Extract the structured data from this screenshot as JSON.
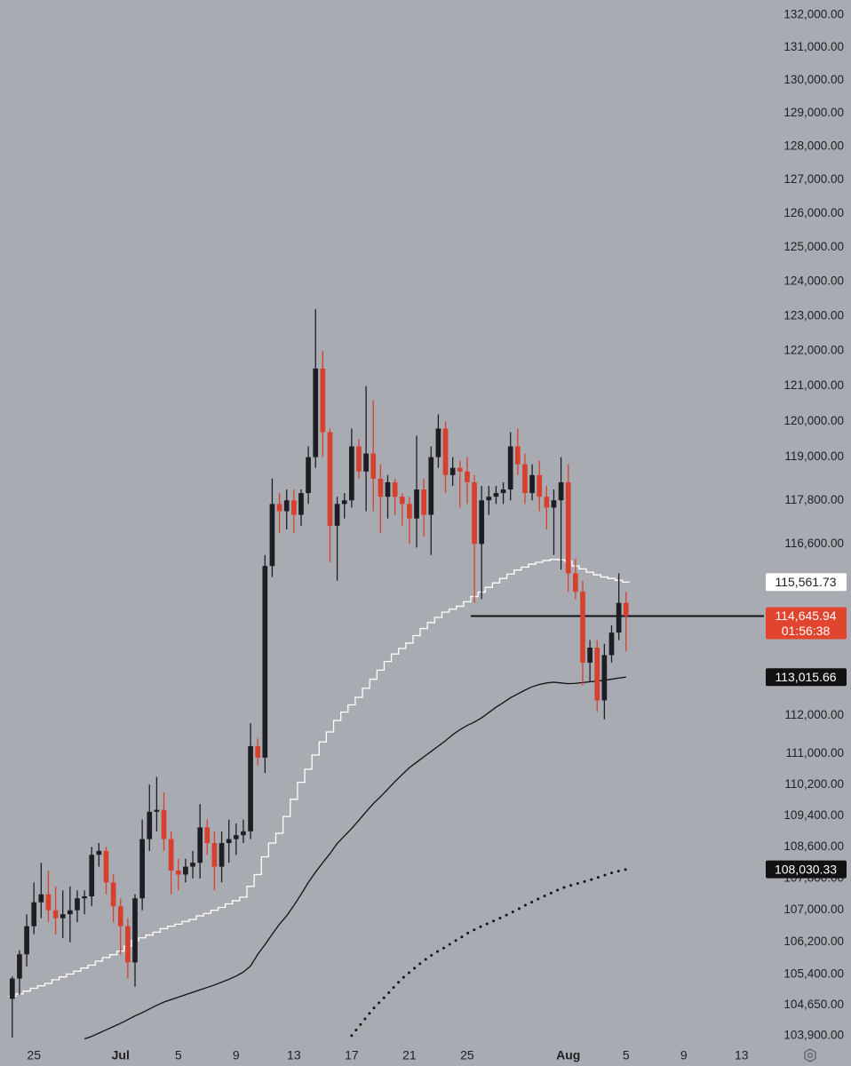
{
  "chart_data": {
    "type": "candlestick",
    "log_scale": true,
    "up_color": "#1d1e23",
    "down_color": "#d8402e",
    "background": "#a9abb2",
    "xlim": [
      -1.7,
      104.1
    ],
    "ylim": [
      103700,
      132470
    ],
    "xticks": [
      {
        "value": 3,
        "label": "25"
      },
      {
        "value": 15,
        "label": "Jul"
      },
      {
        "value": 23,
        "label": "5"
      },
      {
        "value": 31,
        "label": "9"
      },
      {
        "value": 39,
        "label": "13"
      },
      {
        "value": 47,
        "label": "17"
      },
      {
        "value": 55,
        "label": "21"
      },
      {
        "value": 63,
        "label": "25"
      },
      {
        "value": 77,
        "label": "Aug"
      },
      {
        "value": 85,
        "label": "5"
      },
      {
        "value": 93,
        "label": "9"
      },
      {
        "value": 101,
        "label": "13"
      }
    ],
    "yticks": [
      {
        "value": 132000,
        "label": "132,000.00"
      },
      {
        "value": 131000,
        "label": "131,000.00"
      },
      {
        "value": 130000,
        "label": "130,000.00"
      },
      {
        "value": 129000,
        "label": "129,000.00"
      },
      {
        "value": 128000,
        "label": "128,000.00"
      },
      {
        "value": 127000,
        "label": "127,000.00"
      },
      {
        "value": 126000,
        "label": "126,000.00"
      },
      {
        "value": 125000,
        "label": "125,000.00"
      },
      {
        "value": 124000,
        "label": "124,000.00"
      },
      {
        "value": 123000,
        "label": "123,000.00"
      },
      {
        "value": 122000,
        "label": "122,000.00"
      },
      {
        "value": 121000,
        "label": "121,000.00"
      },
      {
        "value": 120000,
        "label": "120,000.00"
      },
      {
        "value": 119000,
        "label": "119,000.00"
      },
      {
        "value": 117800,
        "label": "117,800.00"
      },
      {
        "value": 116600,
        "label": "116,600.00"
      },
      {
        "value": 112000,
        "label": "112,000.00"
      },
      {
        "value": 111000,
        "label": "111,000.00"
      },
      {
        "value": 110200,
        "label": "110,200.00"
      },
      {
        "value": 109400,
        "label": "109,400.00"
      },
      {
        "value": 108600,
        "label": "108,600.00"
      },
      {
        "value": 107800,
        "label": "107,800.00"
      },
      {
        "value": 107000,
        "label": "107,000.00"
      },
      {
        "value": 106200,
        "label": "106,200.00"
      },
      {
        "value": 105400,
        "label": "105,400.00"
      },
      {
        "value": 104650,
        "label": "104,650.00"
      },
      {
        "value": 103900,
        "label": "103,900.00"
      }
    ],
    "open": [
      104800,
      105300,
      105900,
      106600,
      107200,
      107400,
      107000,
      106800,
      106900,
      107000,
      107300,
      107350,
      108400,
      108500,
      107700,
      107100,
      106600,
      105700,
      107300,
      108800,
      109500,
      109550,
      108800,
      108000,
      107900,
      108100,
      108200,
      109100,
      108700,
      108100,
      108700,
      108800,
      108900,
      109000,
      111200,
      110900,
      116000,
      117700,
      117500,
      117800,
      117400,
      118000,
      119000,
      121500,
      119700,
      117100,
      117700,
      117800,
      119300,
      118600,
      119100,
      118400,
      117900,
      118300,
      117900,
      117700,
      117300,
      118100,
      117400,
      119000,
      119800,
      118500,
      118700,
      118600,
      118300,
      116600,
      117800,
      117900,
      118000,
      118100,
      119300,
      118800,
      118000,
      118500,
      117900,
      117600,
      117800,
      118300,
      115800,
      115300,
      113400,
      113800,
      112400,
      113600,
      114200,
      115000
    ],
    "high": [
      105350,
      106000,
      106900,
      107700,
      108200,
      108000,
      107600,
      107500,
      107600,
      107500,
      107500,
      108600,
      108700,
      108600,
      107900,
      107300,
      106800,
      107400,
      109300,
      110200,
      110400,
      110000,
      109000,
      108300,
      108300,
      108500,
      109700,
      109300,
      109000,
      109000,
      109300,
      109200,
      109300,
      111800,
      111400,
      116300,
      118400,
      118000,
      118100,
      118100,
      118100,
      119300,
      123200,
      122000,
      119800,
      117900,
      118000,
      119800,
      119500,
      121000,
      120600,
      118800,
      118500,
      118400,
      118000,
      117900,
      119600,
      118400,
      119300,
      120200,
      120000,
      119000,
      118900,
      119000,
      118500,
      118200,
      118200,
      118200,
      118300,
      119700,
      119800,
      119100,
      118800,
      118900,
      118200,
      118100,
      119000,
      118800,
      116200,
      115600,
      114000,
      114000,
      113900,
      114400,
      115800,
      115300
    ],
    "low": [
      103850,
      104900,
      105600,
      106400,
      106800,
      106700,
      106400,
      106300,
      106200,
      106700,
      106900,
      107100,
      108100,
      107400,
      106700,
      105900,
      105300,
      105100,
      107000,
      108500,
      109000,
      108500,
      107400,
      107500,
      107700,
      107800,
      107800,
      108400,
      107500,
      107700,
      108200,
      108400,
      108700,
      108800,
      110700,
      110500,
      115700,
      116900,
      117000,
      116900,
      117100,
      117700,
      118700,
      119000,
      116100,
      115600,
      117300,
      117600,
      118400,
      117500,
      117500,
      116900,
      117300,
      117400,
      117100,
      116600,
      116500,
      116800,
      116300,
      118700,
      118000,
      118200,
      117600,
      117700,
      115000,
      115100,
      117400,
      117700,
      117700,
      117800,
      118500,
      117700,
      117800,
      117500,
      117000,
      116300,
      115900,
      115300,
      115100,
      112800,
      112900,
      112100,
      111900,
      113400,
      114000,
      113700
    ],
    "close": [
      105300,
      105900,
      106600,
      107200,
      107400,
      107000,
      106800,
      106900,
      107000,
      107300,
      107350,
      108400,
      108500,
      107700,
      107100,
      106600,
      105700,
      107300,
      108800,
      109500,
      109550,
      108800,
      108000,
      107900,
      108100,
      108200,
      109100,
      108700,
      108100,
      108700,
      108800,
      108900,
      109000,
      111200,
      110900,
      116000,
      117700,
      117500,
      117800,
      117400,
      118000,
      119000,
      121500,
      119700,
      117100,
      117700,
      117800,
      119300,
      118600,
      119100,
      118400,
      117900,
      118300,
      117900,
      117700,
      117300,
      118100,
      117400,
      119000,
      119800,
      118500,
      118700,
      118600,
      118300,
      116600,
      117800,
      117900,
      118000,
      118100,
      119300,
      118800,
      118000,
      118500,
      117900,
      117600,
      117800,
      118300,
      115800,
      115300,
      113400,
      113800,
      112400,
      113600,
      114200,
      115000,
      114645.94
    ],
    "lines": [
      {
        "color": "#ffffff",
        "style": "step",
        "values": [
          104860,
          104920,
          104990,
          105060,
          105120,
          105180,
          105270,
          105340,
          105410,
          105480,
          105560,
          105630,
          105730,
          105820,
          105890,
          105980,
          106100,
          106240,
          106310,
          106380,
          106450,
          106540,
          106600,
          106650,
          106720,
          106770,
          106860,
          106920,
          107000,
          107070,
          107160,
          107240,
          107330,
          107600,
          107900,
          108350,
          108700,
          108950,
          109380,
          109820,
          110260,
          110600,
          110970,
          111310,
          111570,
          111870,
          112090,
          112280,
          112480,
          112720,
          112960,
          113200,
          113430,
          113630,
          113780,
          113920,
          114120,
          114310,
          114470,
          114610,
          114750,
          114830,
          114910,
          115030,
          115170,
          115290,
          115420,
          115540,
          115660,
          115780,
          115890,
          115970,
          116050,
          116100,
          116150,
          116180,
          116170,
          116130,
          116000,
          115920,
          115830,
          115760,
          115700,
          115660,
          115610,
          115561.73
        ]
      },
      {
        "color": "#111114",
        "style": "solid",
        "values": [
          null,
          null,
          null,
          null,
          null,
          null,
          null,
          null,
          null,
          null,
          103820,
          103880,
          103960,
          104040,
          104120,
          104200,
          104290,
          104380,
          104460,
          104550,
          104640,
          104720,
          104780,
          104840,
          104900,
          104960,
          105020,
          105080,
          105140,
          105210,
          105280,
          105360,
          105460,
          105610,
          105900,
          106140,
          106400,
          106650,
          106860,
          107120,
          107400,
          107700,
          107960,
          108200,
          108430,
          108690,
          108880,
          109070,
          109280,
          109500,
          109710,
          109890,
          110080,
          110280,
          110460,
          110640,
          110780,
          110920,
          111060,
          111200,
          111340,
          111500,
          111630,
          111740,
          111830,
          111940,
          112080,
          112220,
          112340,
          112470,
          112570,
          112670,
          112760,
          112820,
          112860,
          112880,
          112860,
          112840,
          112850,
          112870,
          112890,
          112910,
          112930,
          112960,
          112990,
          113015.66
        ]
      },
      {
        "color": "#111114",
        "style": "dotted",
        "values": [
          null,
          null,
          null,
          null,
          null,
          null,
          null,
          null,
          null,
          null,
          null,
          null,
          null,
          null,
          null,
          null,
          null,
          null,
          null,
          null,
          null,
          null,
          null,
          null,
          null,
          null,
          null,
          null,
          null,
          null,
          null,
          null,
          null,
          null,
          null,
          null,
          null,
          null,
          null,
          null,
          null,
          null,
          null,
          null,
          null,
          null,
          null,
          103900,
          104120,
          104340,
          104560,
          104740,
          104920,
          105120,
          105300,
          105450,
          105600,
          105740,
          105870,
          105980,
          106080,
          106200,
          106300,
          106420,
          106510,
          106600,
          106680,
          106760,
          106840,
          106930,
          107020,
          107120,
          107210,
          107300,
          107380,
          107460,
          107550,
          107610,
          107660,
          107710,
          107760,
          107820,
          107880,
          107940,
          107990,
          108030.33
        ]
      }
    ],
    "hline": {
      "value": 114645.94,
      "from": 63.5,
      "color": "#111114"
    },
    "price_markers": [
      {
        "value": 115561.73,
        "label": "115,561.73",
        "color": "#ffffff",
        "text_color": "#1e1f24"
      },
      {
        "value": 114645.94,
        "label": "114,645.94",
        "sublabel": "01:56:38",
        "color": "#e2452f",
        "text_color": "#ffffff"
      },
      {
        "value": 113015.66,
        "label": "113,015.66",
        "color": "#111114",
        "text_color": "#ffffff"
      },
      {
        "value": 108030.33,
        "label": "108,030.33",
        "color": "#111114",
        "text_color": "#ffffff"
      }
    ]
  }
}
